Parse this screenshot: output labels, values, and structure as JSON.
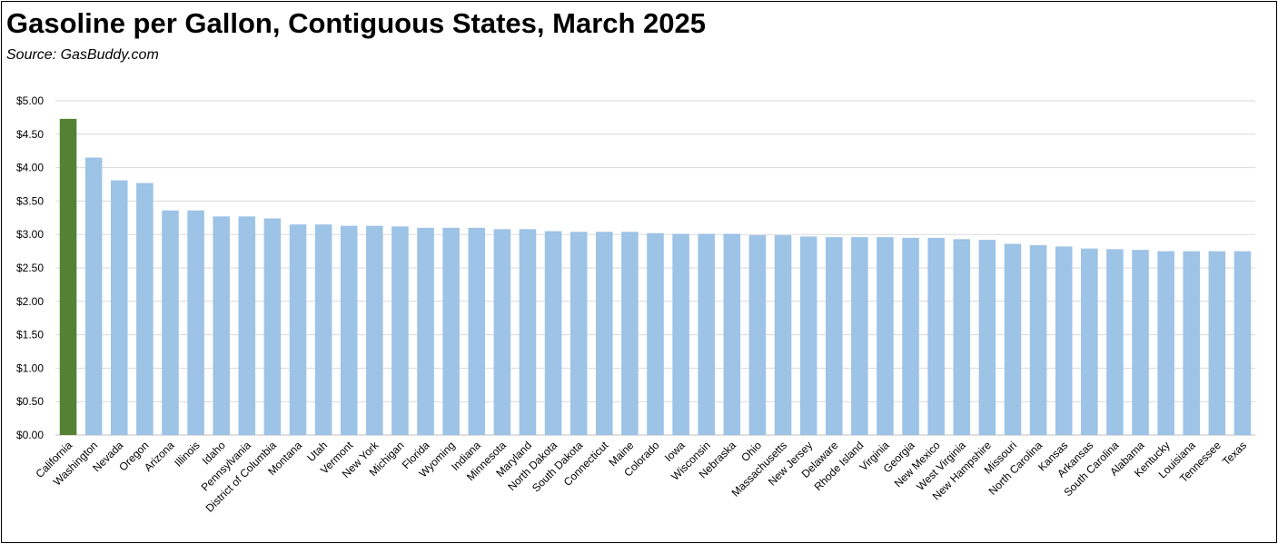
{
  "title": "Gasoline per Gallon, Contiguous States, March 2025",
  "subtitle": "Source:  GasBuddy.com",
  "colors": {
    "highlight": "#548235",
    "bar": "#9DC3E6",
    "grid": "#D9D9D9",
    "axis": "#BFBFBF"
  },
  "chart_data": {
    "type": "bar",
    "title": "Gasoline per Gallon, Contiguous States, March 2025",
    "xlabel": "",
    "ylabel": "",
    "ylim": [
      0,
      5
    ],
    "yticks": [
      "$0.00",
      "$0.50",
      "$1.00",
      "$1.50",
      "$2.00",
      "$2.50",
      "$3.00",
      "$3.50",
      "$4.00",
      "$4.50",
      "$5.00"
    ],
    "grid": true,
    "highlight_category": "California",
    "categories": [
      "California",
      "Washington",
      "Nevada",
      "Oregon",
      "Arizona",
      "Illinois",
      "Idaho",
      "Pennsylvania",
      "District of Columbia",
      "Montana",
      "Utah",
      "Vermont",
      "New York",
      "Michigan",
      "Florida",
      "Wyoming",
      "Indiana",
      "Minnesota",
      "Maryland",
      "North Dakota",
      "South Dakota",
      "Connecticut",
      "Maine",
      "Colorado",
      "Iowa",
      "Wisconsin",
      "Nebraska",
      "Ohio",
      "Massachusetts",
      "New Jersey",
      "Delaware",
      "Rhode Island",
      "Virginia",
      "Georgia",
      "New Mexico",
      "West Virginia",
      "New Hampshire",
      "Missouri",
      "North Carolina",
      "Kansas",
      "Arkansas",
      "South Carolina",
      "Alabama",
      "Kentucky",
      "Louisiana",
      "Tennessee",
      "Texas"
    ],
    "values": [
      4.73,
      4.15,
      3.81,
      3.77,
      3.36,
      3.36,
      3.27,
      3.27,
      3.24,
      3.15,
      3.15,
      3.13,
      3.13,
      3.12,
      3.1,
      3.1,
      3.1,
      3.08,
      3.08,
      3.05,
      3.04,
      3.04,
      3.04,
      3.02,
      3.01,
      3.01,
      3.01,
      2.99,
      2.99,
      2.97,
      2.96,
      2.96,
      2.96,
      2.95,
      2.95,
      2.93,
      2.92,
      2.86,
      2.84,
      2.82,
      2.79,
      2.78,
      2.77,
      2.75,
      2.75,
      2.75,
      2.75
    ]
  }
}
